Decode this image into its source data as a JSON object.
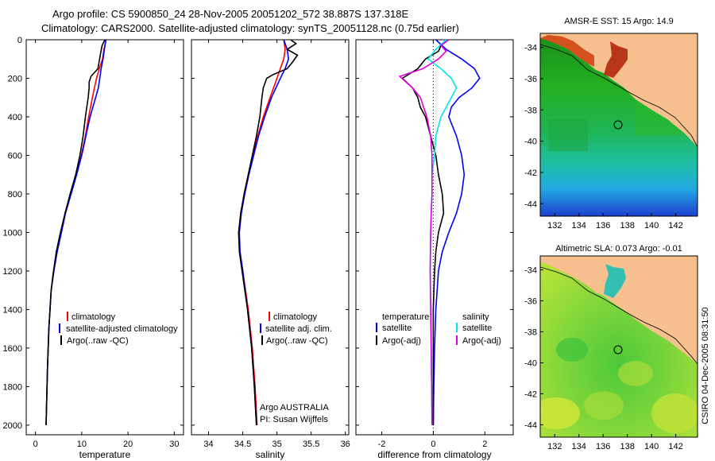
{
  "header": {
    "line1": "Argo profile: CS 5900850_24 28-Nov-2005 20051202_572 38.887S 137.318E",
    "line2": "Climatology: CARS2000. Satellite-adjusted climatology: synTS_20051128.nc (0.75d earlier)"
  },
  "footer_vertical": "CSIRO 04-Dec-2005 08:31:50",
  "colors": {
    "red": "#ff0000",
    "blue": "#0000ff",
    "black": "#000000",
    "cyan": "#00e5ee",
    "magenta": "#dd00dd",
    "land": "#f7c08e"
  },
  "chart_data": [
    {
      "type": "line",
      "xlabel": "temperature",
      "ylabel": "",
      "xlim": [
        -2,
        32
      ],
      "ylim": [
        2050,
        0
      ],
      "x_ticks": [
        "0",
        "10",
        "20",
        "30"
      ],
      "y_ticks": [
        "0",
        "200",
        "400",
        "600",
        "800",
        "1000",
        "1200",
        "1400",
        "1600",
        "1800",
        "2000"
      ],
      "legend": [
        "climatology",
        "satellite-adjusted climatology",
        "Argo(..raw -QC)"
      ],
      "series": [
        {
          "name": "climatology",
          "color": "red",
          "depth": [
            0,
            50,
            100,
            150,
            200,
            300,
            400,
            500,
            600,
            700,
            800,
            900,
            1000,
            1100,
            1200,
            1300,
            1500,
            1700,
            1900,
            2000
          ],
          "values": [
            15.3,
            14.8,
            14.5,
            13.8,
            13.2,
            12.3,
            11.5,
            10.8,
            9.9,
            8.8,
            7.6,
            6.4,
            5.5,
            4.6,
            3.9,
            3.4,
            2.9,
            2.6,
            2.4,
            2.3
          ]
        },
        {
          "name": "satellite-adjusted climatology",
          "color": "blue",
          "depth": [
            0,
            50,
            100,
            150,
            200,
            250,
            300,
            400,
            500,
            600,
            700,
            800,
            900,
            1000,
            1100,
            1200,
            1300,
            1500,
            1700,
            1900,
            2000
          ],
          "values": [
            15.2,
            14.9,
            14.6,
            14.2,
            13.9,
            13.6,
            13.0,
            11.8,
            10.9,
            10.0,
            8.9,
            7.7,
            6.5,
            5.6,
            4.7,
            4.0,
            3.4,
            2.9,
            2.6,
            2.4,
            2.3
          ]
        },
        {
          "name": "Argo(..raw -QC)",
          "color": "black",
          "depth": [
            0,
            30,
            80,
            150,
            190,
            220,
            250,
            300,
            400,
            500,
            600,
            700,
            800,
            900,
            1000,
            1100,
            1200,
            1300,
            1500,
            1700,
            1900,
            2000
          ],
          "values": [
            15.0,
            14.4,
            14.0,
            13.5,
            12.0,
            11.6,
            11.6,
            11.4,
            10.8,
            10.3,
            9.6,
            8.7,
            7.5,
            6.4,
            5.4,
            4.5,
            3.9,
            3.4,
            2.9,
            2.6,
            2.4,
            2.3
          ]
        }
      ]
    },
    {
      "type": "line",
      "xlabel": "salinity",
      "ylabel": "",
      "xlim": [
        33.75,
        36.05
      ],
      "ylim": [
        2050,
        0
      ],
      "x_ticks": [
        "34",
        "34.5",
        "35",
        "35.5",
        "36"
      ],
      "legend": [
        "climatology",
        "satellite adj. clim.",
        "Argo(..raw -QC)"
      ],
      "annotations": [
        "Argo AUSTRALIA",
        "PI: Susan Wijffels"
      ],
      "series": [
        {
          "name": "climatology",
          "color": "red",
          "depth": [
            0,
            50,
            100,
            150,
            200,
            300,
            400,
            500,
            600,
            700,
            800,
            900,
            1000,
            1100,
            1200,
            1400,
            1600,
            1800,
            2000
          ],
          "values": [
            35.1,
            35.12,
            35.1,
            35.05,
            35.0,
            34.9,
            34.8,
            34.72,
            34.65,
            34.58,
            34.52,
            34.47,
            34.44,
            34.46,
            34.5,
            34.58,
            34.64,
            34.68,
            34.71
          ]
        },
        {
          "name": "satellite adj. clim.",
          "color": "blue",
          "depth": [
            0,
            50,
            100,
            150,
            200,
            300,
            400,
            500,
            600,
            700,
            800,
            900,
            1000,
            1100,
            1200,
            1400,
            1600,
            1800,
            2000
          ],
          "values": [
            35.1,
            35.15,
            35.17,
            35.12,
            35.05,
            34.92,
            34.82,
            34.73,
            34.66,
            34.59,
            34.53,
            34.48,
            34.45,
            34.46,
            34.5,
            34.57,
            34.63,
            34.67,
            34.7
          ]
        },
        {
          "name": "Argo(..raw -QC)",
          "color": "black",
          "depth": [
            0,
            20,
            50,
            80,
            120,
            150,
            180,
            200,
            250,
            300,
            400,
            500,
            600,
            700,
            800,
            900,
            1000,
            1100,
            1200,
            1400,
            1600,
            1800,
            2000
          ],
          "values": [
            35.2,
            35.28,
            35.15,
            35.3,
            35.22,
            35.15,
            34.95,
            34.85,
            34.8,
            34.78,
            34.75,
            34.7,
            34.64,
            34.58,
            34.52,
            34.47,
            34.44,
            34.45,
            34.49,
            34.57,
            34.63,
            34.67,
            34.7
          ]
        }
      ]
    },
    {
      "type": "line",
      "xlabel": "difference from climatology",
      "ylabel": "",
      "xlim": [
        -3,
        3.1
      ],
      "ylim": [
        2050,
        0
      ],
      "x_ticks": [
        "-2",
        "0",
        "2"
      ],
      "legend_headers": [
        "temperature",
        "salinity"
      ],
      "legend": [
        "satellite",
        "Argo(-adj)",
        "satellite",
        "Argo(-adj)"
      ],
      "series": [
        {
          "name": "temperature satellite",
          "color": "blue",
          "depth": [
            0,
            50,
            100,
            150,
            200,
            250,
            300,
            350,
            400,
            500,
            600,
            700,
            800,
            900,
            1000,
            1100,
            1200,
            1400,
            1600,
            1800,
            2000
          ],
          "values": [
            0.1,
            0.5,
            1.1,
            1.6,
            1.8,
            1.5,
            1.0,
            0.7,
            0.6,
            0.9,
            1.1,
            1.2,
            1.1,
            0.9,
            0.6,
            0.35,
            0.2,
            0.1,
            0.05,
            0.02,
            0.0
          ]
        },
        {
          "name": "temperature Argo(-adj)",
          "color": "black",
          "depth": [
            0,
            30,
            60,
            100,
            150,
            200,
            250,
            300,
            350,
            400,
            500,
            600,
            700,
            800,
            900,
            1000,
            1100,
            1200,
            1400,
            1600,
            1800,
            2000
          ],
          "values": [
            0.5,
            0.3,
            0.2,
            -0.3,
            -0.6,
            -1.2,
            -0.8,
            -0.6,
            -0.5,
            -0.3,
            -0.1,
            0.1,
            0.2,
            0.35,
            0.4,
            0.2,
            0.1,
            0.05,
            0.0,
            0.0,
            0.0,
            0.0
          ]
        },
        {
          "name": "salinity satellite",
          "color": "cyan",
          "depth": [
            0,
            50,
            100,
            150,
            200,
            250,
            300,
            400,
            500,
            600,
            700,
            800,
            900,
            1000,
            1200,
            1400,
            1600,
            1800,
            2000
          ],
          "values": [
            0.5,
            0.1,
            -0.2,
            0.3,
            0.7,
            0.9,
            0.7,
            0.3,
            0.1,
            0.05,
            -0.05,
            -0.05,
            -0.08,
            -0.1,
            -0.12,
            -0.1,
            -0.08,
            -0.06,
            -0.05
          ]
        },
        {
          "name": "salinity Argo(-adj)",
          "color": "magenta",
          "depth": [
            0,
            30,
            60,
            100,
            150,
            190,
            250,
            300,
            400,
            500,
            600,
            700,
            800,
            900,
            1000,
            1200,
            1400,
            1600,
            1800,
            2000
          ],
          "values": [
            0.6,
            0.3,
            0.5,
            0.2,
            -0.4,
            -1.3,
            -0.8,
            -0.5,
            -0.25,
            -0.1,
            -0.05,
            -0.05,
            -0.05,
            -0.08,
            -0.1,
            -0.12,
            -0.1,
            -0.08,
            -0.06,
            -0.05
          ]
        }
      ]
    }
  ],
  "maps": [
    {
      "title": "AMSR-E SST: 15 Argo: 14.9",
      "x_ticks": [
        "132",
        "134",
        "136",
        "138",
        "140",
        "142"
      ],
      "y_ticks": [
        "-34",
        "-36",
        "-38",
        "-40",
        "-42",
        "-44"
      ]
    },
    {
      "title": "Altimetric SLA: 0.073 Argo: -0.01",
      "x_ticks": [
        "132",
        "134",
        "136",
        "138",
        "140",
        "142"
      ],
      "y_ticks": [
        "-34",
        "-36",
        "-38",
        "-40",
        "-42",
        "-44"
      ]
    }
  ],
  "float_position": {
    "lon": 137.318,
    "lat": -38.887
  }
}
